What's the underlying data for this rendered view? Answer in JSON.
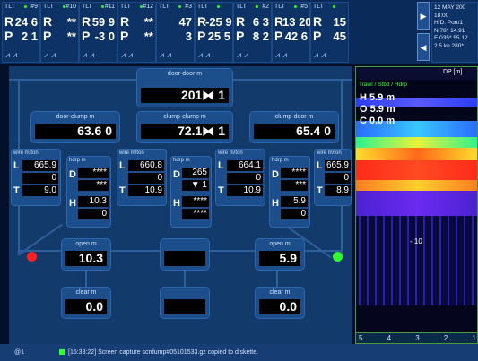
{
  "top_sensors": [
    {
      "label": "TLT",
      "num": "#9",
      "r1": [
        "R",
        "24 6"
      ],
      "r2": [
        "P",
        "2 1"
      ]
    },
    {
      "label": "TLT",
      "num": "#10",
      "r1": [
        "R",
        "**"
      ],
      "r2": [
        "P",
        "**"
      ]
    },
    {
      "label": "TLT",
      "num": "#11",
      "r1": [
        "R",
        "59 9"
      ],
      "r2": [
        "P",
        "-3 0"
      ]
    },
    {
      "label": "TLT",
      "num": "#12",
      "r1": [
        "R",
        "**"
      ],
      "r2": [
        "P",
        "**"
      ]
    },
    {
      "label": "TLT",
      "num": "#3",
      "r1": [
        "",
        "47"
      ],
      "r2": [
        "",
        "3"
      ]
    },
    {
      "label": "TLT",
      "num": "",
      "r1": [
        "R",
        "-25 9"
      ],
      "r2": [
        "P",
        "25 5"
      ]
    },
    {
      "label": "TLT",
      "num": "#2",
      "r1": [
        "R",
        "6 3"
      ],
      "r2": [
        "P",
        "8 2"
      ]
    },
    {
      "label": "TLT",
      "num": "#5",
      "r1": [
        "R",
        "13 20"
      ],
      "r2": [
        "P",
        "42 6"
      ]
    },
    {
      "label": "TLT",
      "num": "",
      "r1": [
        "R",
        "15"
      ],
      "r2": [
        "P",
        "45"
      ]
    }
  ],
  "side_buttons": [
    "▶",
    "◀"
  ],
  "info_lines": [
    "12 MAY 200",
    "18:00",
    "H/D: Port/1",
    "N 78* 14.91",
    "E 035* 55.12",
    "2.5 kn 280*"
  ],
  "door_door": {
    "title": "door-door m",
    "value": "201⧓ 1"
  },
  "door_clump": {
    "title": "door-clump m",
    "value": "63.6 0"
  },
  "clump_clump": {
    "title": "clump-clump m",
    "value": "72.1⧓ 1"
  },
  "clump_door": {
    "title": "clump-door m",
    "value": "65.4 0"
  },
  "wire_left": {
    "hdr": "wire m/ton",
    "L": "665.9",
    "mid": "0",
    "T": "9.0"
  },
  "hdrp_left": {
    "hdr": "hdrp m",
    "D": "****",
    "D2": "***",
    "H": "10.3",
    "H2": "0"
  },
  "wire_mid_left": {
    "hdr": "wire m/ton",
    "L": "660.8",
    "mid": "0",
    "T": "10.9"
  },
  "hdrp_mid": {
    "hdr": "hdrp m",
    "D": "265",
    "D2": "▼ 1",
    "H": "****",
    "H2": "****"
  },
  "wire_mid_right": {
    "hdr": "wire m/ton",
    "L": "664.1",
    "mid": "0",
    "T": "10.9"
  },
  "hdrp_right": {
    "hdr": "hdrp m",
    "D": "****",
    "D2": "***",
    "H": "5.9",
    "H2": "0"
  },
  "wire_right": {
    "hdr": "wire m/ton",
    "L": "665.9",
    "mid": "0",
    "T": "8.9"
  },
  "open_left": {
    "title": "open m",
    "value": "10.3"
  },
  "open_right": {
    "title": "open m",
    "value": "5.9"
  },
  "clear_left": {
    "title": "clear m",
    "value": "0.0"
  },
  "clear_right": {
    "title": "clear m",
    "value": "0.0"
  },
  "echogram": {
    "header": "DP [m]",
    "legend": "Trawl / Stbd / Hdrp",
    "H": "H 5.9 m",
    "O": "O 5.9 m",
    "C": "C 0.0 m",
    "depth_label": "- 10",
    "scale": [
      "5",
      "4",
      "3",
      "2",
      "1"
    ]
  },
  "status": {
    "left": "@1",
    "message": "[15:33:22] Screen capture scrdump#05101533.gz copied to diskette."
  },
  "colors": {
    "red_dot": "#ff2020",
    "green_dot": "#30ff30"
  }
}
